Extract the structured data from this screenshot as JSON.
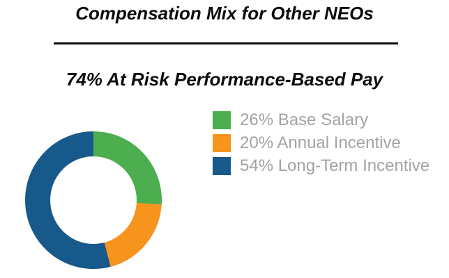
{
  "header": {
    "title": "Compensation Mix for Other NEOs",
    "subtitle": "74% At Risk Performance-Based Pay"
  },
  "chart_data": {
    "type": "pie",
    "subtype": "donut",
    "title": "Compensation Mix for Other NEOs",
    "subtitle": "74% At Risk Performance-Based Pay",
    "categories": [
      "Base Salary",
      "Annual Incentive",
      "Long-Term Incentive"
    ],
    "values": [
      26,
      20,
      54
    ],
    "unit": "%",
    "colors": [
      "#4cae4f",
      "#f7941e",
      "#16598a"
    ],
    "start_angle_deg": 0,
    "direction": "clockwise",
    "donut_hole_ratio": 0.64,
    "legend_position": "right"
  },
  "legend": {
    "items": [
      {
        "label": "26% Base Salary",
        "color": "#4cae4f"
      },
      {
        "label": "20% Annual Incentive",
        "color": "#f7941e"
      },
      {
        "label": "54% Long-Term Incentive",
        "color": "#16598a"
      }
    ]
  },
  "colors": {
    "title_text": "#0d0d0d",
    "legend_text": "#a3a3a3",
    "divider": "#0d0d0d",
    "background": "#ffffff"
  }
}
